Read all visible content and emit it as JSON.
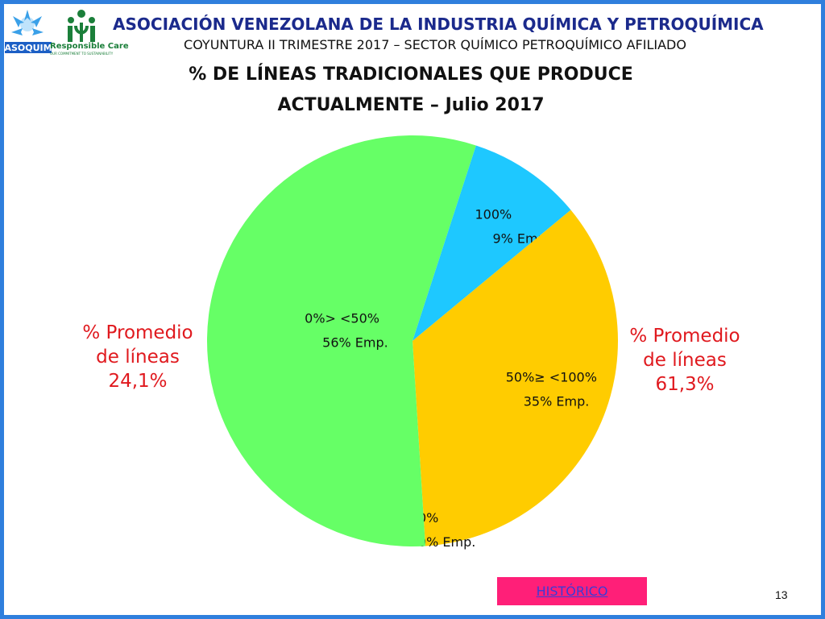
{
  "header": {
    "org_title": "ASOCIACIÓN VENEZOLANA DE LA INDUSTRIA QUÍMICA Y PETROQUÍMICA",
    "org_subtitle": "COYUNTURA II TRIMESTRE 2017 – SECTOR QUÍMICO PETROQUÍMICO AFILIADO",
    "logo_text": "ASOQUIM",
    "rc_text": "Responsible Care",
    "rc_tagline": "OUR COMMITMENT TO SUSTAINABILITY"
  },
  "chart_data": {
    "type": "pie",
    "title_line1": "% DE LÍNEAS TRADICIONALES QUE PRODUCE",
    "title_line2": "ACTUALMENTE – Julio 2017",
    "slices": [
      {
        "label": "100%",
        "sublabel": "9% Emp.",
        "value": 9,
        "color": "#1ec8ff"
      },
      {
        "label": "50%≥ <100%",
        "sublabel": "35% Emp.",
        "value": 35,
        "color": "#ffcc00"
      },
      {
        "label": "0%",
        "sublabel": "0% Emp.",
        "value": 0,
        "color": "#cccccc"
      },
      {
        "label": "0%> <50%",
        "sublabel": "56% Emp.",
        "value": 56,
        "color": "#66ff66"
      }
    ],
    "annotations": [
      {
        "line1": "% Promedio",
        "line2": "de líneas",
        "line3": "24,1%"
      },
      {
        "line1": "% Promedio",
        "line2": "de líneas",
        "line3": "61,3%"
      }
    ]
  },
  "footer": {
    "historico_label": "HISTÓRICO",
    "page_number": "13"
  }
}
